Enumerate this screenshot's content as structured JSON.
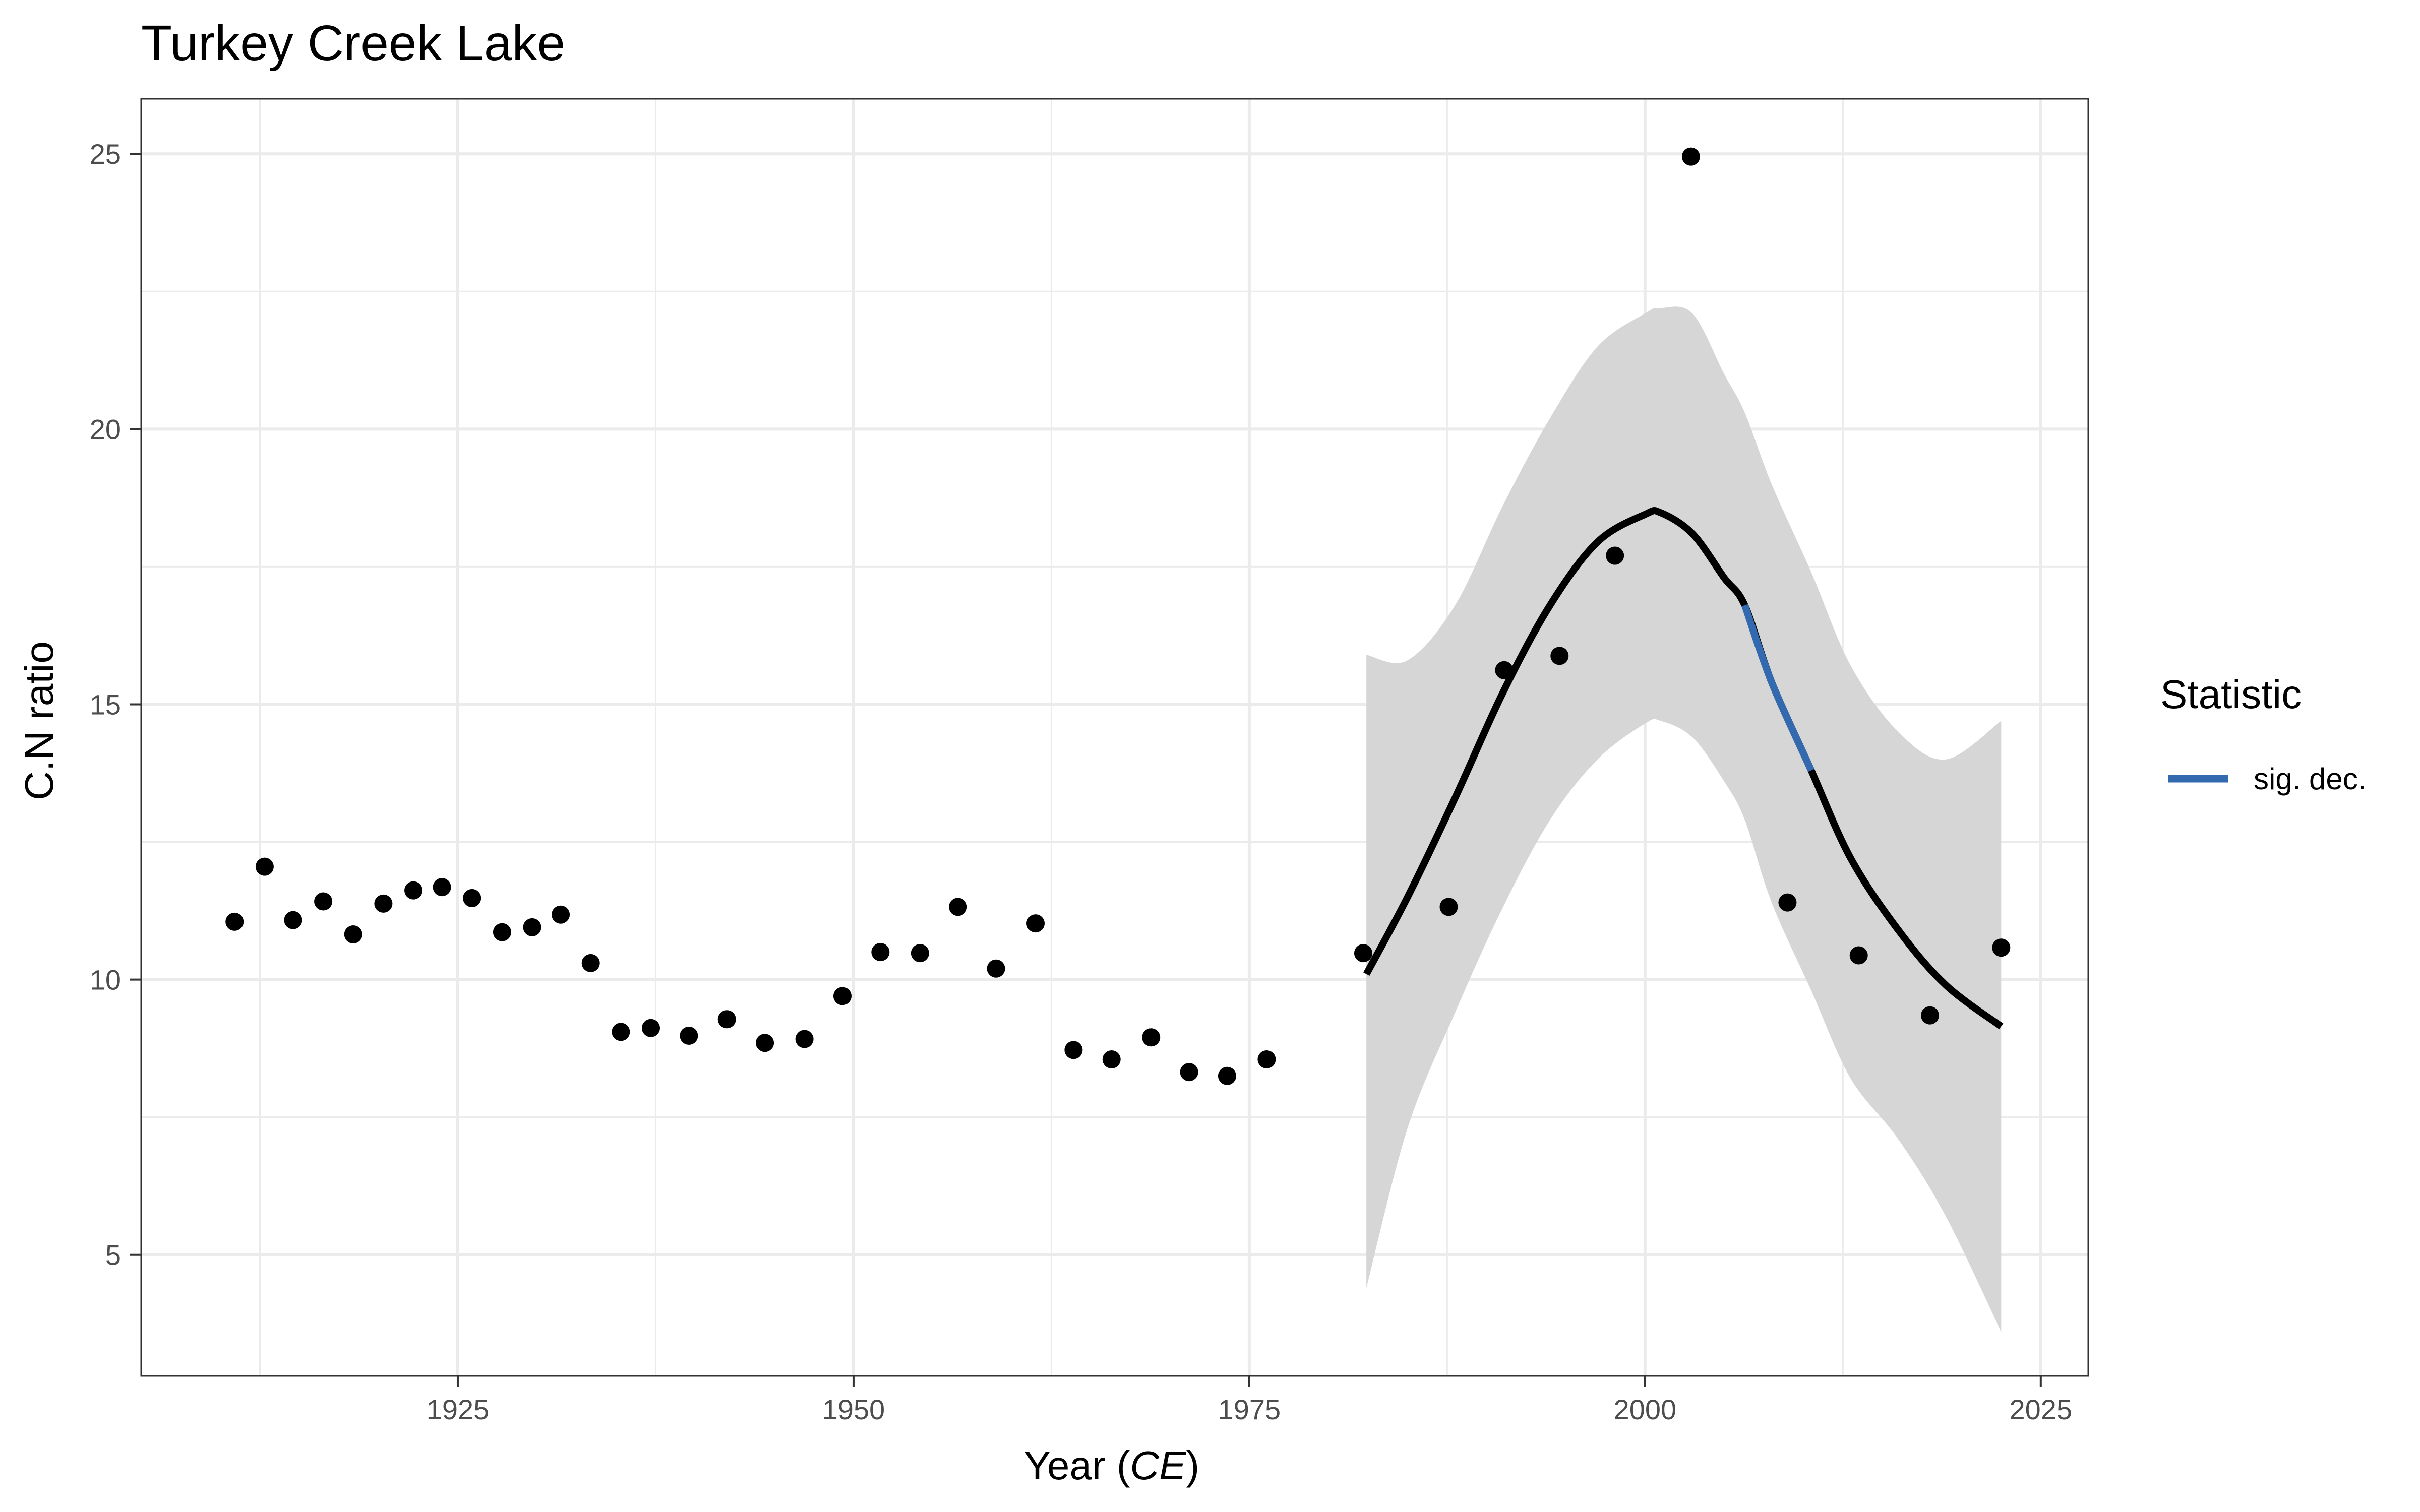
{
  "chart_data": {
    "type": "scatter",
    "title": "Turkey Creek Lake",
    "xlabel": {
      "prefix": "Year (",
      "italic": "CE",
      "suffix": ")"
    },
    "ylabel": "C.N ratio",
    "xlim": [
      1905,
      2028
    ],
    "ylim": [
      2.8,
      26
    ],
    "x_ticks": [
      1925,
      1950,
      1975,
      2000,
      2025
    ],
    "y_ticks": [
      5,
      10,
      15,
      20,
      25
    ],
    "grid": true,
    "colors": {
      "points": "#000000",
      "fit": "#000000",
      "sig_dec": "#3369ae",
      "band": "#d6d6d6",
      "grid": "#ebebeb",
      "tick_text": "#4d4d4d"
    },
    "points": [
      [
        1910.9,
        11.05
      ],
      [
        1912.8,
        12.05
      ],
      [
        1914.6,
        11.08
      ],
      [
        1916.5,
        11.42
      ],
      [
        1918.4,
        10.82
      ],
      [
        1920.3,
        11.38
      ],
      [
        1922.2,
        11.62
      ],
      [
        1924.0,
        11.68
      ],
      [
        1925.9,
        11.48
      ],
      [
        1927.8,
        10.86
      ],
      [
        1929.7,
        10.95
      ],
      [
        1931.5,
        11.18
      ],
      [
        1933.4,
        10.3
      ],
      [
        1935.3,
        9.05
      ],
      [
        1937.2,
        9.12
      ],
      [
        1939.6,
        8.98
      ],
      [
        1942.0,
        9.28
      ],
      [
        1944.4,
        8.85
      ],
      [
        1946.9,
        8.92
      ],
      [
        1949.3,
        9.7
      ],
      [
        1951.7,
        10.5
      ],
      [
        1954.2,
        10.48
      ],
      [
        1956.6,
        11.32
      ],
      [
        1959.0,
        10.2
      ],
      [
        1961.5,
        11.02
      ],
      [
        1963.9,
        8.72
      ],
      [
        1966.3,
        8.55
      ],
      [
        1968.8,
        8.95
      ],
      [
        1971.2,
        8.32
      ],
      [
        1973.6,
        8.25
      ],
      [
        1976.1,
        8.55
      ],
      [
        1982.2,
        10.48
      ],
      [
        1987.6,
        11.32
      ],
      [
        1991.1,
        15.62
      ],
      [
        1994.6,
        15.88
      ],
      [
        1998.1,
        17.7
      ],
      [
        2002.9,
        24.95
      ],
      [
        2009.0,
        11.4
      ],
      [
        2013.5,
        10.44
      ],
      [
        2018.0,
        9.35
      ],
      [
        2022.5,
        10.58
      ]
    ],
    "fit": {
      "x": [
        1982.4,
        1985,
        1988,
        1991,
        1994,
        1997,
        2000,
        2001,
        2003,
        2005,
        2006.3,
        2008,
        2010.5,
        2013,
        2016,
        2019,
        2022.5
      ],
      "y": [
        10.1,
        11.5,
        13.3,
        15.2,
        16.8,
        17.95,
        18.45,
        18.48,
        18.1,
        17.3,
        16.8,
        15.4,
        13.8,
        12.2,
        10.9,
        9.9,
        9.15
      ],
      "lower": [
        4.4,
        7.3,
        9.4,
        11.3,
        12.9,
        14.0,
        14.65,
        14.7,
        14.4,
        13.6,
        12.9,
        11.4,
        9.8,
        8.2,
        7.1,
        5.7,
        3.6
      ],
      "upper": [
        15.9,
        15.8,
        16.8,
        18.6,
        20.2,
        21.5,
        22.1,
        22.2,
        22.1,
        21.0,
        20.3,
        19.0,
        17.4,
        15.7,
        14.5,
        14.0,
        14.7
      ]
    },
    "sig_dec_segment": [
      2006.3,
      2010.5
    ],
    "legend": {
      "title": "Statistic",
      "items": [
        {
          "label": "sig. dec."
        }
      ],
      "placement": "right"
    }
  }
}
